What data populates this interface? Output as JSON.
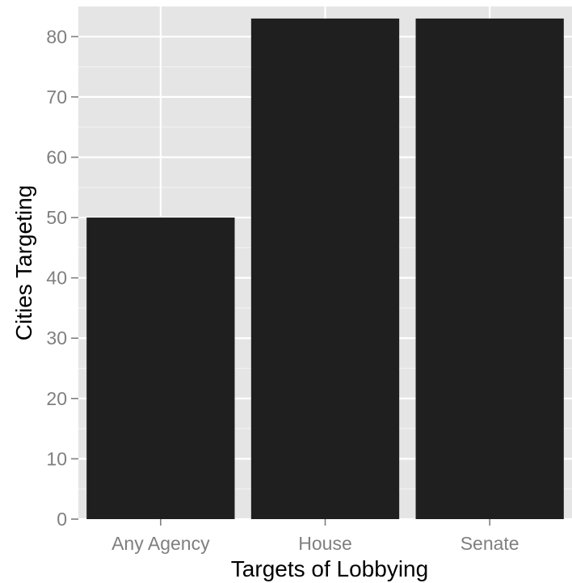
{
  "chart_data": {
    "type": "bar",
    "title": "",
    "xlabel": "Targets of Lobbying",
    "ylabel": "Cities Targeting",
    "categories": [
      "Any Agency",
      "House",
      "Senate"
    ],
    "values": [
      50,
      83,
      83
    ],
    "ylim": [
      0,
      85
    ],
    "yticks": [
      0,
      10,
      20,
      30,
      40,
      50,
      60,
      70,
      80
    ],
    "grid": true,
    "legend": "none",
    "colors": {
      "bar": "#1f1f1f",
      "panel": "#e5e5e5",
      "grid_major": "#ffffff",
      "grid_minor": "#f2f2f2",
      "tick_text": "#7f7f7f",
      "axis_title": "#000000"
    }
  }
}
